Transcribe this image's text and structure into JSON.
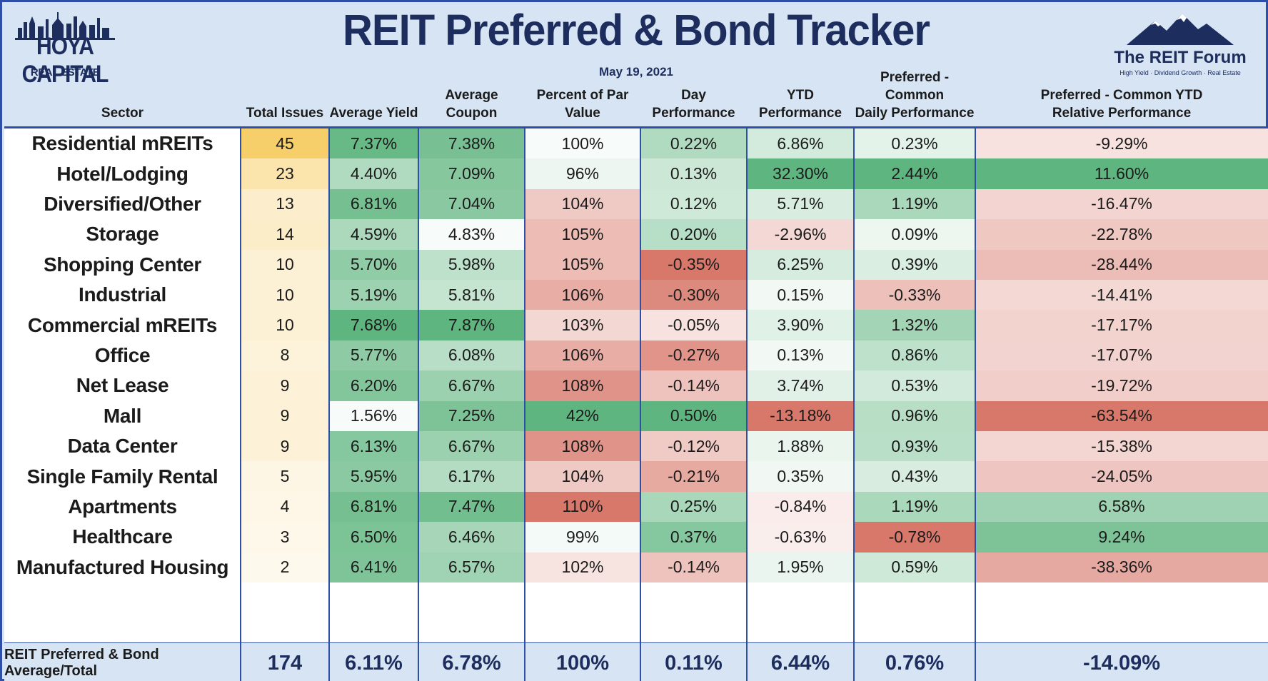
{
  "header": {
    "title": "REIT Preferred & Bond Tracker",
    "date": "May 19, 2021",
    "left_logo": {
      "name": "HOYA CAPITAL",
      "sub": "REAL ESTATE"
    },
    "right_logo": {
      "name": "The REIT Forum",
      "tagline": "High Yield · Dividend Growth · Real Estate"
    }
  },
  "chart_data": {
    "type": "table",
    "title": "REIT Preferred & Bond Tracker",
    "columns": [
      [
        "Sector"
      ],
      [
        "Total Issues"
      ],
      [
        "Average Yield"
      ],
      [
        "Average Coupon"
      ],
      [
        "Percent of Par Value"
      ],
      [
        "Day Performance"
      ],
      [
        "YTD Performance"
      ],
      [
        "Preferred - Common",
        "Daily Performance"
      ],
      [
        "Preferred - Common YTD",
        "Relative Performance"
      ]
    ],
    "rows": [
      [
        "Residential mREITs",
        "45",
        "7.37%",
        "7.38%",
        "100%",
        "0.22%",
        "6.86%",
        "0.23%",
        "-9.29%"
      ],
      [
        "Hotel/Lodging",
        "23",
        "4.40%",
        "7.09%",
        "96%",
        "0.13%",
        "32.30%",
        "2.44%",
        "11.60%"
      ],
      [
        "Diversified/Other",
        "13",
        "6.81%",
        "7.04%",
        "104%",
        "0.12%",
        "5.71%",
        "1.19%",
        "-16.47%"
      ],
      [
        "Storage",
        "14",
        "4.59%",
        "4.83%",
        "105%",
        "0.20%",
        "-2.96%",
        "0.09%",
        "-22.78%"
      ],
      [
        "Shopping Center",
        "10",
        "5.70%",
        "5.98%",
        "105%",
        "-0.35%",
        "6.25%",
        "0.39%",
        "-28.44%"
      ],
      [
        "Industrial",
        "10",
        "5.19%",
        "5.81%",
        "106%",
        "-0.30%",
        "0.15%",
        "-0.33%",
        "-14.41%"
      ],
      [
        "Commercial mREITs",
        "10",
        "7.68%",
        "7.87%",
        "103%",
        "-0.05%",
        "3.90%",
        "1.32%",
        "-17.17%"
      ],
      [
        "Office",
        "8",
        "5.77%",
        "6.08%",
        "106%",
        "-0.27%",
        "0.13%",
        "0.86%",
        "-17.07%"
      ],
      [
        "Net Lease",
        "9",
        "6.20%",
        "6.67%",
        "108%",
        "-0.14%",
        "3.74%",
        "0.53%",
        "-19.72%"
      ],
      [
        "Mall",
        "9",
        "1.56%",
        "7.25%",
        "42%",
        "0.50%",
        "-13.18%",
        "0.96%",
        "-63.54%"
      ],
      [
        "Data Center",
        "9",
        "6.13%",
        "6.67%",
        "108%",
        "-0.12%",
        "1.88%",
        "0.93%",
        "-15.38%"
      ],
      [
        "Single Family Rental",
        "5",
        "5.95%",
        "6.17%",
        "104%",
        "-0.21%",
        "0.35%",
        "0.43%",
        "-24.05%"
      ],
      [
        "Apartments",
        "4",
        "6.81%",
        "7.47%",
        "110%",
        "0.25%",
        "-0.84%",
        "1.19%",
        "6.58%"
      ],
      [
        "Healthcare",
        "3",
        "6.50%",
        "6.46%",
        "99%",
        "0.37%",
        "-0.63%",
        "-0.78%",
        "9.24%"
      ],
      [
        "Manufactured Housing",
        "2",
        "6.41%",
        "6.57%",
        "102%",
        "-0.14%",
        "1.95%",
        "0.59%",
        "-38.36%"
      ]
    ],
    "total_row": [
      "REIT Preferred & Bond Average/Total",
      "174",
      "6.11%",
      "6.78%",
      "100%",
      "0.11%",
      "6.44%",
      "0.76%",
      "-14.09%"
    ]
  },
  "colors": {
    "frame": "#2d4fa8",
    "header_bg": "#d6e4f3",
    "title": "#1d2d5e",
    "green": "#5fb57f",
    "red": "#d8786b",
    "yellow": "#f7cf6a",
    "white": "#ffffff"
  }
}
